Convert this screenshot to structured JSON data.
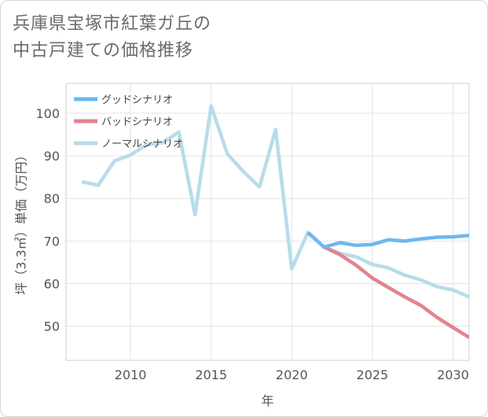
{
  "title": {
    "line1": "兵庫県宝塚市紅葉ガ丘の",
    "line2": "中古戸建ての価格推移"
  },
  "chart_data": {
    "type": "line",
    "title": "兵庫県宝塚市紅葉ガ丘の中古戸建ての価格推移",
    "xlabel": "年",
    "ylabel": "坪（3.3㎡）単価（万円）",
    "xlim": [
      2006,
      2031
    ],
    "ylim": [
      42,
      107
    ],
    "xticks": [
      2010,
      2015,
      2020,
      2025,
      2030
    ],
    "yticks": [
      50,
      60,
      70,
      80,
      90,
      100
    ],
    "grid": true,
    "legend_position": "top-left",
    "series": [
      {
        "name": "グッドシナリオ",
        "color": "#6cb8f0",
        "x": [
          2021,
          2022,
          2023,
          2024,
          2025,
          2026,
          2027,
          2028,
          2029,
          2030,
          2031
        ],
        "values": [
          72.0,
          68.6,
          69.6,
          69.0,
          69.2,
          70.3,
          70.0,
          70.5,
          70.9,
          71.0,
          71.3
        ]
      },
      {
        "name": "バッドシナリオ",
        "color": "#e0848f",
        "x": [
          2021,
          2022,
          2023,
          2024,
          2025,
          2026,
          2027,
          2028,
          2029,
          2030,
          2031
        ],
        "values": [
          72.0,
          68.6,
          66.8,
          64.3,
          61.3,
          59.1,
          56.9,
          54.9,
          52.1,
          49.7,
          47.4
        ]
      },
      {
        "name": "ノーマルシナリオ",
        "color": "#b7dcea",
        "x": [
          2007,
          2008,
          2009,
          2010,
          2011,
          2012,
          2013,
          2014,
          2015,
          2016,
          2017,
          2018,
          2019,
          2020,
          2021,
          2022,
          2023,
          2024,
          2025,
          2026,
          2027,
          2028,
          2029,
          2030,
          2031
        ],
        "values": [
          83.9,
          83.1,
          88.8,
          90.2,
          92.6,
          93.1,
          95.6,
          76.2,
          101.7,
          90.5,
          86.3,
          82.7,
          96.2,
          63.5,
          72.0,
          68.6,
          67.1,
          66.3,
          64.5,
          63.7,
          62.0,
          60.9,
          59.3,
          58.5,
          56.9
        ]
      }
    ]
  }
}
